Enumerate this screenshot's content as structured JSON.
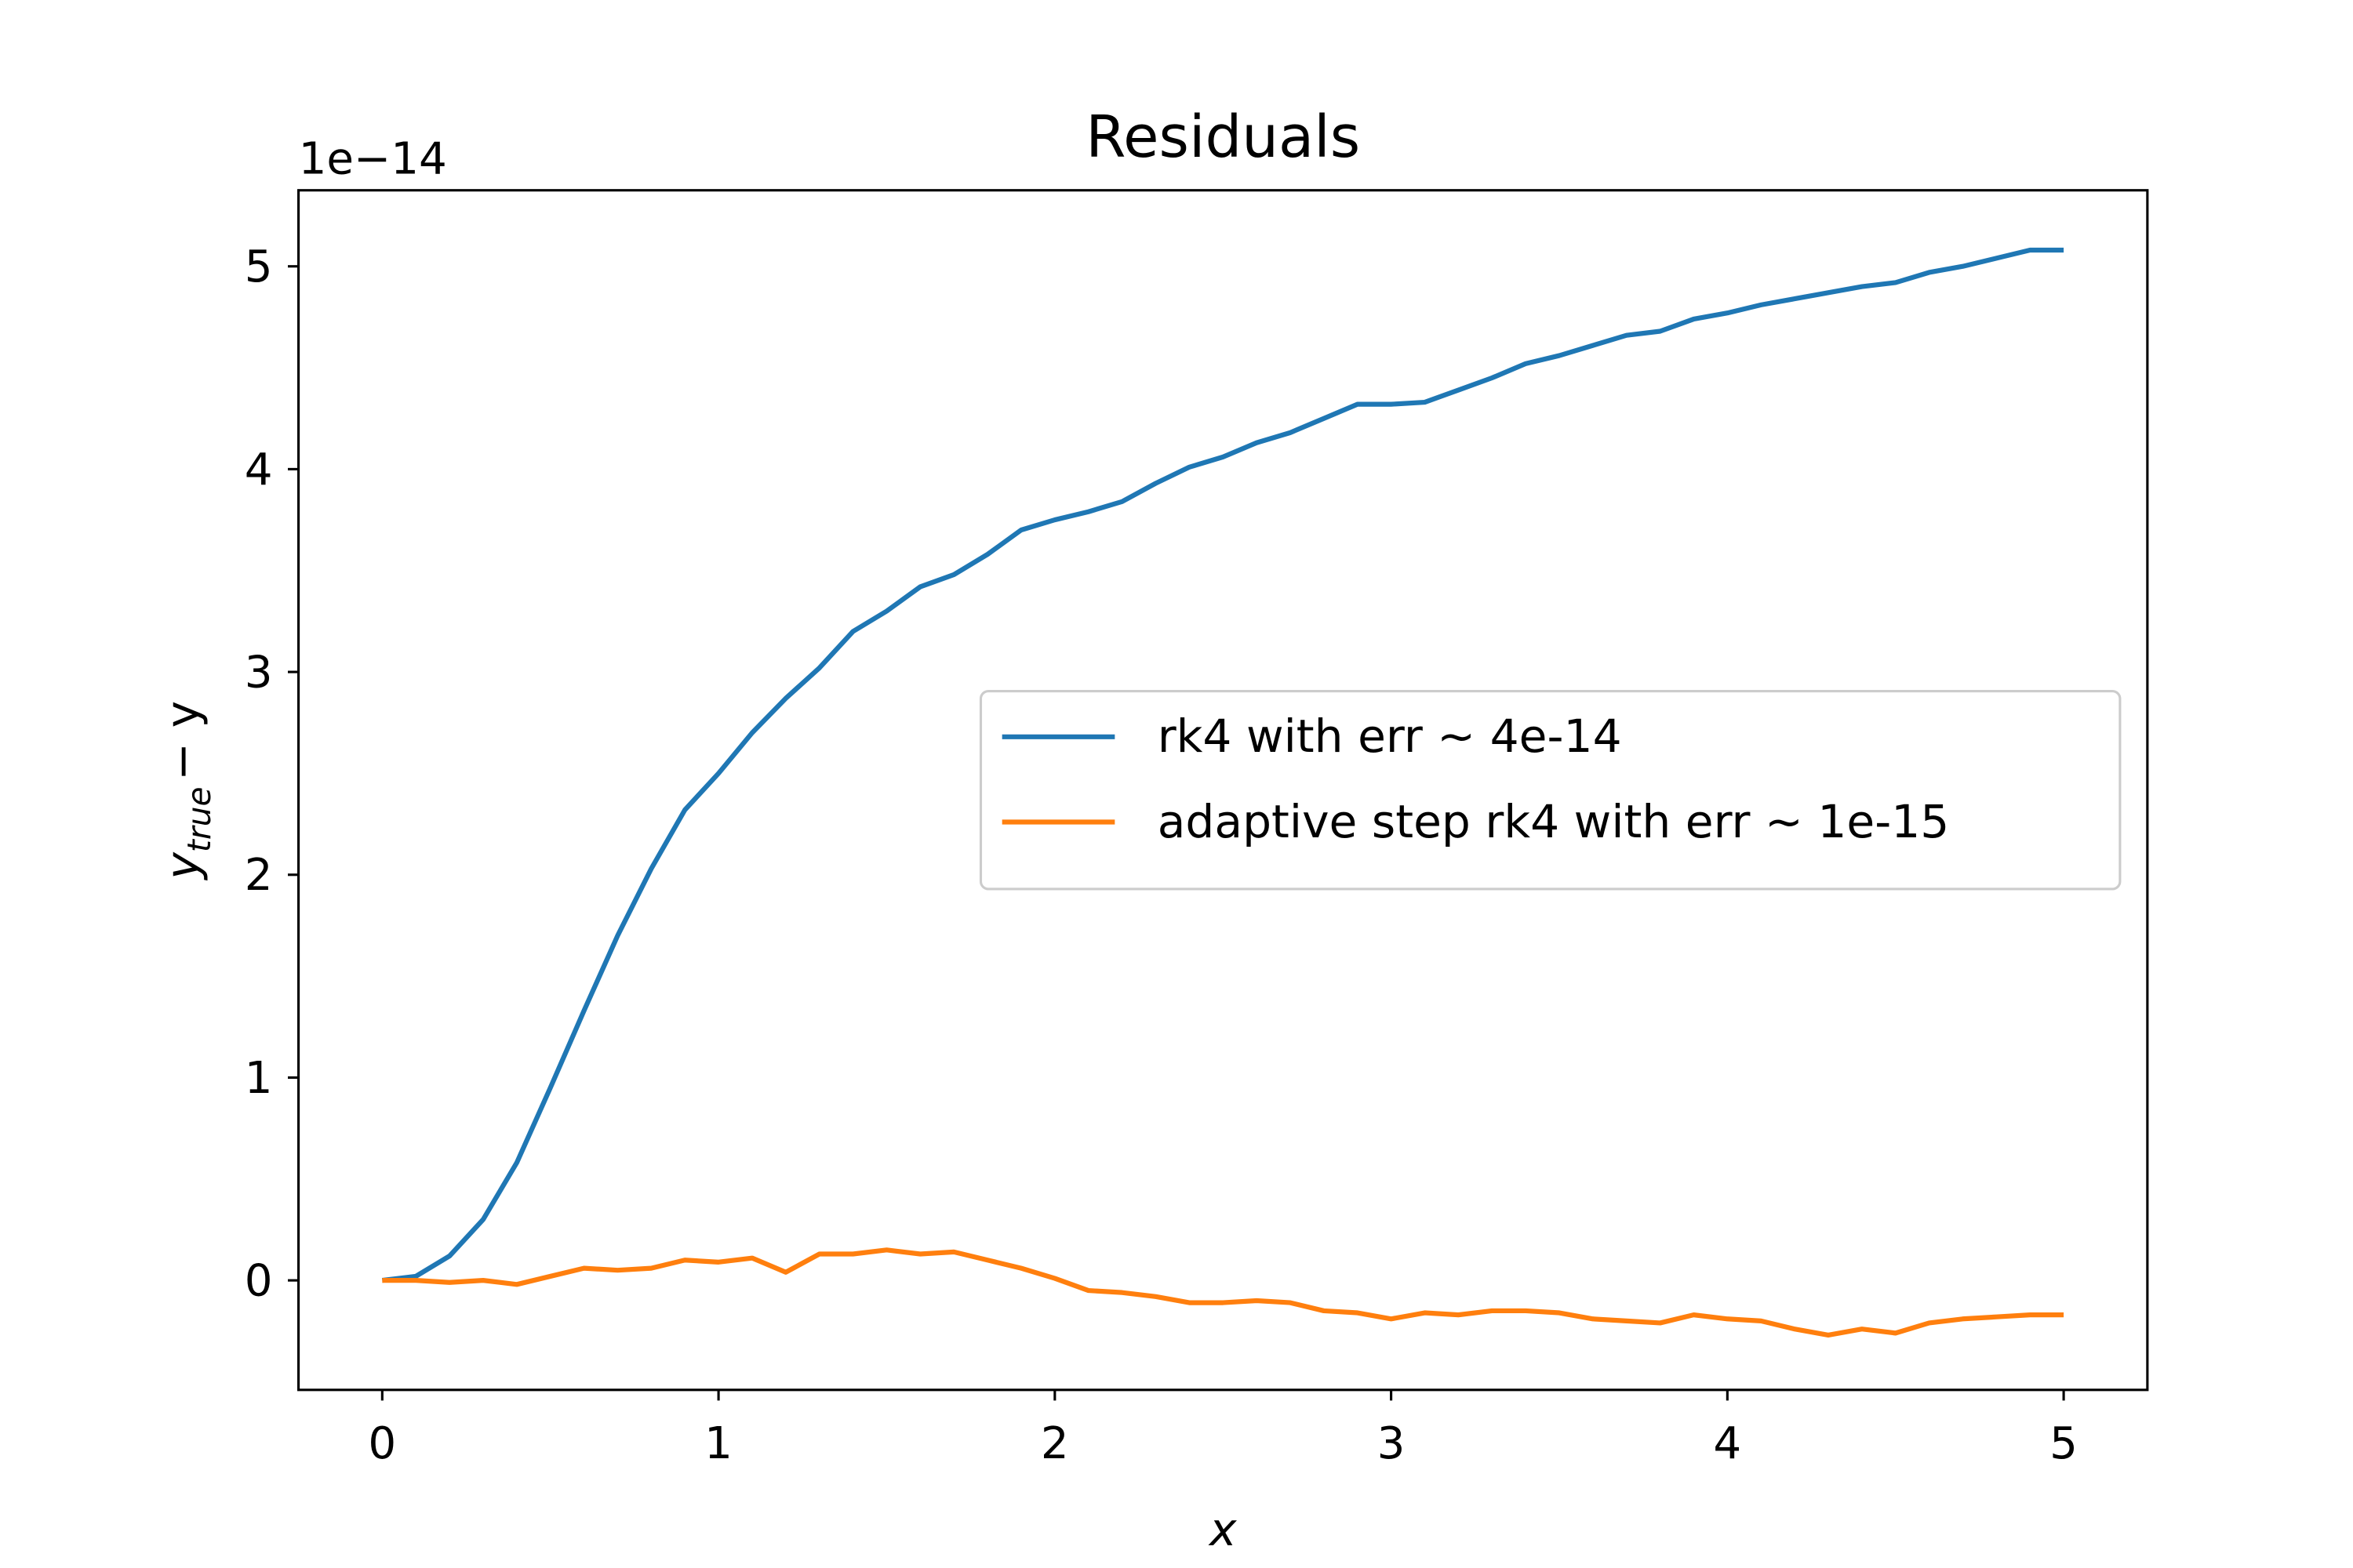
{
  "chart_data": {
    "type": "line",
    "title": "Residuals",
    "xlabel": "x",
    "ylabel": {
      "main": "y",
      "sub": "true",
      "tail": "− y"
    },
    "y_offset": "1e−14",
    "xlim": [
      -0.249,
      5.249
    ],
    "ylim": [
      -0.54,
      5.375
    ],
    "xticks": [
      0,
      1,
      2,
      3,
      4,
      5
    ],
    "yticks": [
      0,
      1,
      2,
      3,
      4,
      5
    ],
    "legend": "center right",
    "x": [
      0,
      0.1,
      0.2,
      0.3,
      0.4,
      0.5,
      0.6,
      0.7,
      0.8,
      0.9,
      1,
      1.1,
      1.2,
      1.3,
      1.4,
      1.5,
      1.6,
      1.7,
      1.8,
      1.9,
      2,
      2.1,
      2.2,
      2.3,
      2.4,
      2.5,
      2.6,
      2.7,
      2.8,
      2.9,
      3,
      3.1,
      3.2,
      3.3,
      3.4,
      3.5,
      3.6,
      3.7,
      3.8,
      3.9,
      4,
      4.1,
      4.2,
      4.3,
      4.4,
      4.5,
      4.6,
      4.7,
      4.8,
      4.9,
      5
    ],
    "series": [
      {
        "name": "rk4 with err ∼ 4e-14",
        "color": "#1f77b4",
        "values": [
          0,
          0.02,
          0.12,
          0.3,
          0.58,
          0.95,
          1.33,
          1.7,
          2.03,
          2.32,
          2.5,
          2.7,
          2.87,
          3.02,
          3.2,
          3.3,
          3.42,
          3.48,
          3.58,
          3.7,
          3.75,
          3.79,
          3.84,
          3.93,
          4.01,
          4.06,
          4.13,
          4.18,
          4.25,
          4.32,
          4.32,
          4.33,
          4.39,
          4.45,
          4.52,
          4.56,
          4.61,
          4.66,
          4.68,
          4.74,
          4.77,
          4.81,
          4.84,
          4.87,
          4.9,
          4.92,
          4.97,
          5.0,
          5.04,
          5.08,
          5.08
        ]
      },
      {
        "name": "adaptive step rk4 with err ∼ 1e-15",
        "color": "#ff7f0e",
        "values": [
          0,
          0,
          -0.01,
          0,
          -0.02,
          0.02,
          0.06,
          0.05,
          0.06,
          0.1,
          0.09,
          0.11,
          0.04,
          0.13,
          0.13,
          0.15,
          0.13,
          0.14,
          0.1,
          0.06,
          0.01,
          -0.05,
          -0.06,
          -0.08,
          -0.11,
          -0.11,
          -0.1,
          -0.11,
          -0.15,
          -0.16,
          -0.19,
          -0.16,
          -0.17,
          -0.15,
          -0.15,
          -0.16,
          -0.19,
          -0.2,
          -0.21,
          -0.17,
          -0.19,
          -0.2,
          -0.24,
          -0.27,
          -0.24,
          -0.26,
          -0.21,
          -0.19,
          -0.18,
          -0.17,
          -0.17
        ]
      }
    ]
  }
}
